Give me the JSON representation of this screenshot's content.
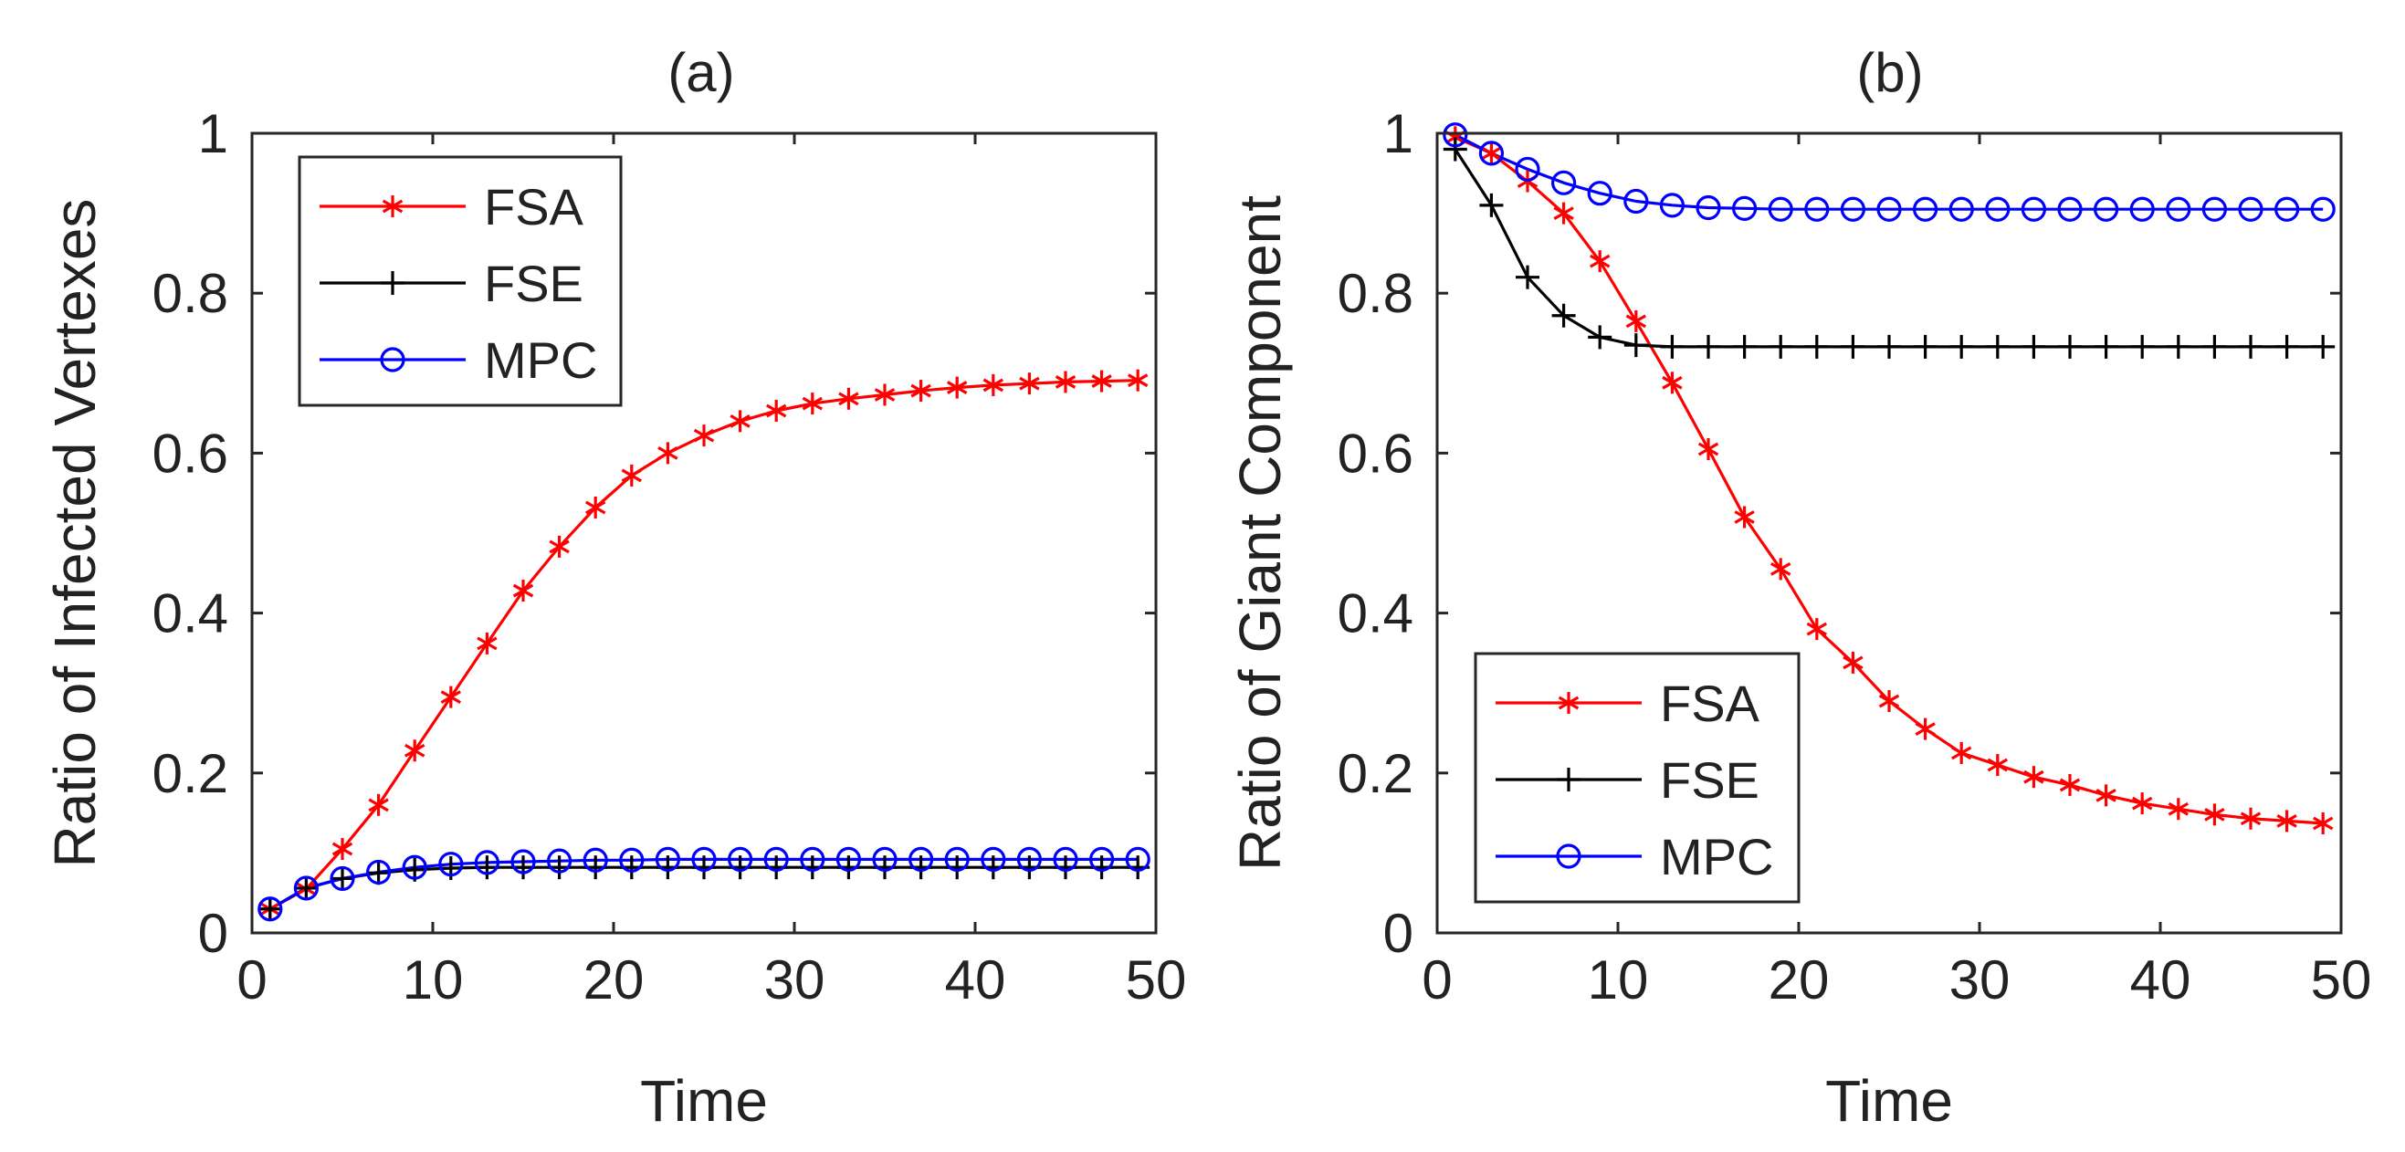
{
  "chart_data": [
    {
      "type": "line",
      "title": "(a)",
      "xlabel": "Time",
      "ylabel": "Ratio of Infected Vertexes",
      "xlim": [
        0,
        50
      ],
      "ylim": [
        0,
        1
      ],
      "xticks": [
        0,
        10,
        20,
        30,
        40,
        50
      ],
      "yticks": [
        0,
        0.2,
        0.4,
        0.6,
        0.8,
        1
      ],
      "xtick_labels": [
        "0",
        "10",
        "20",
        "30",
        "40",
        "50"
      ],
      "ytick_labels": [
        "0",
        "0.2",
        "0.4",
        "0.6",
        "0.8",
        "1"
      ],
      "grid": false,
      "legend_position": "top-left",
      "x": [
        1,
        3,
        5,
        7,
        9,
        11,
        13,
        15,
        17,
        19,
        21,
        23,
        25,
        27,
        29,
        31,
        33,
        35,
        37,
        39,
        41,
        43,
        45,
        47,
        49
      ],
      "series": [
        {
          "name": "FSA",
          "color": "#ff0000",
          "marker": "asterisk",
          "values": [
            0.03,
            0.055,
            0.105,
            0.16,
            0.228,
            0.295,
            0.362,
            0.428,
            0.483,
            0.532,
            0.572,
            0.6,
            0.622,
            0.64,
            0.653,
            0.662,
            0.668,
            0.673,
            0.678,
            0.682,
            0.685,
            0.687,
            0.689,
            0.69,
            0.691
          ]
        },
        {
          "name": "FSE",
          "color": "#000000",
          "marker": "plus",
          "values": [
            0.03,
            0.056,
            0.068,
            0.075,
            0.079,
            0.081,
            0.082,
            0.082,
            0.082,
            0.082,
            0.082,
            0.082,
            0.082,
            0.082,
            0.082,
            0.082,
            0.082,
            0.082,
            0.082,
            0.082,
            0.082,
            0.082,
            0.082,
            0.082,
            0.082
          ]
        },
        {
          "name": "MPC",
          "color": "#0000ff",
          "marker": "circle",
          "values": [
            0.03,
            0.056,
            0.068,
            0.076,
            0.082,
            0.086,
            0.088,
            0.089,
            0.09,
            0.091,
            0.091,
            0.092,
            0.092,
            0.092,
            0.092,
            0.092,
            0.092,
            0.092,
            0.092,
            0.092,
            0.092,
            0.092,
            0.092,
            0.092,
            0.092
          ]
        }
      ]
    },
    {
      "type": "line",
      "title": "(b)",
      "xlabel": "Time",
      "ylabel": "Ratio of Giant Component",
      "xlim": [
        0,
        50
      ],
      "ylim": [
        0,
        1
      ],
      "xticks": [
        0,
        10,
        20,
        30,
        40,
        50
      ],
      "yticks": [
        0,
        0.2,
        0.4,
        0.6,
        0.8,
        1
      ],
      "xtick_labels": [
        "0",
        "10",
        "20",
        "30",
        "40",
        "50"
      ],
      "ytick_labels": [
        "0",
        "0.2",
        "0.4",
        "0.6",
        "0.8",
        "1"
      ],
      "grid": false,
      "legend_position": "bottom-left",
      "x": [
        1,
        3,
        5,
        7,
        9,
        11,
        13,
        15,
        17,
        19,
        21,
        23,
        25,
        27,
        29,
        31,
        33,
        35,
        37,
        39,
        41,
        43,
        45,
        47,
        49
      ],
      "series": [
        {
          "name": "FSA",
          "color": "#ff0000",
          "marker": "asterisk",
          "values": [
            0.995,
            0.975,
            0.94,
            0.9,
            0.84,
            0.765,
            0.688,
            0.605,
            0.52,
            0.455,
            0.38,
            0.338,
            0.29,
            0.255,
            0.225,
            0.21,
            0.195,
            0.185,
            0.172,
            0.162,
            0.155,
            0.148,
            0.143,
            0.14,
            0.137
          ]
        },
        {
          "name": "FSE",
          "color": "#000000",
          "marker": "plus",
          "values": [
            0.98,
            0.91,
            0.82,
            0.772,
            0.745,
            0.735,
            0.733,
            0.733,
            0.733,
            0.733,
            0.733,
            0.733,
            0.733,
            0.733,
            0.733,
            0.733,
            0.733,
            0.733,
            0.733,
            0.733,
            0.733,
            0.733,
            0.733,
            0.733,
            0.733
          ]
        },
        {
          "name": "MPC",
          "color": "#0000ff",
          "marker": "circle",
          "values": [
            0.998,
            0.975,
            0.955,
            0.938,
            0.925,
            0.915,
            0.91,
            0.907,
            0.906,
            0.905,
            0.905,
            0.905,
            0.905,
            0.905,
            0.905,
            0.905,
            0.905,
            0.905,
            0.905,
            0.905,
            0.905,
            0.905,
            0.905,
            0.905,
            0.905
          ]
        }
      ]
    }
  ]
}
